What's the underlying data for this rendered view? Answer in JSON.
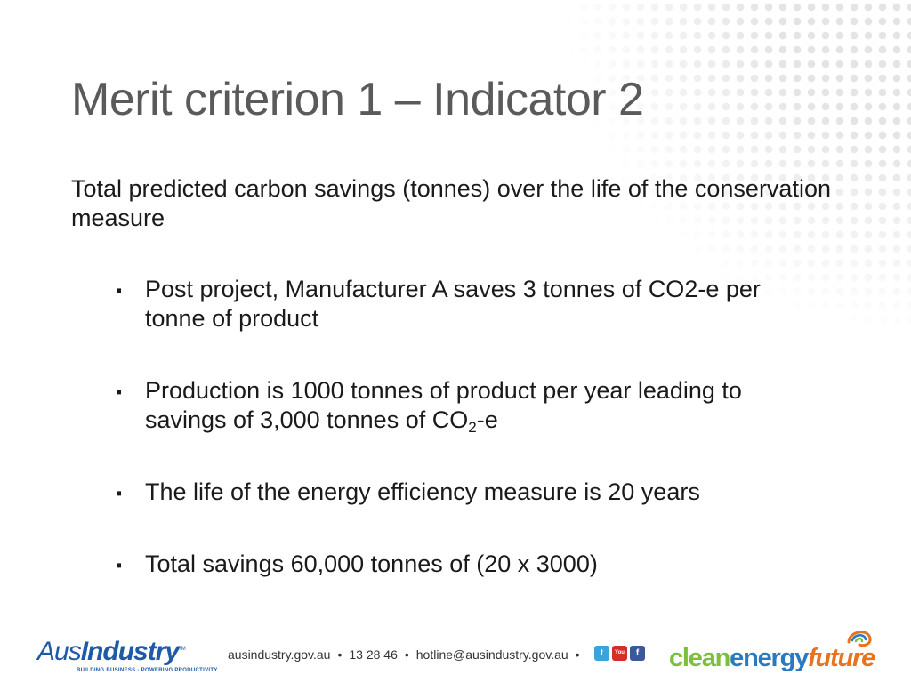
{
  "slide": {
    "title": "Merit criterion 1 – Indicator 2",
    "intro": "Total predicted carbon savings (tonnes) over the life of the conservation measure",
    "bullet_symbol": "▪",
    "bullets": [
      {
        "text": "Post project, Manufacturer A saves 3 tonnes of CO2-e per tonne of product"
      },
      {
        "text_before": "Production is 1000 tonnes of product per year leading to savings of 3,000 tonnes of CO",
        "subscript": "2",
        "text_after": "-e"
      },
      {
        "text": "The life of the energy efficiency measure is 20 years"
      },
      {
        "text": "Total savings 60,000 tonnes of  (20 x 3000)"
      }
    ]
  },
  "footer": {
    "ausindustry_logo": {
      "prefix": "Aus",
      "name": "Industry",
      "tm": "TM",
      "tagline": "BUILDING BUSINESS · POWERING PRODUCTIVITY"
    },
    "website": "ausindustry.gov.au",
    "separator": "•",
    "phone": "13 28 46",
    "email": "hotline@ausindustry.gov.au",
    "social_icons": [
      "twitter-icon",
      "youtube-icon",
      "facebook-icon"
    ],
    "social_glyphs": {
      "twitter": "t",
      "youtube": "You Tube",
      "facebook": "f"
    },
    "clean_energy_logo": {
      "part1": "clean",
      "part2": "energy",
      "part3": "future"
    }
  },
  "colors": {
    "title": "#5a5a5a",
    "ausindustry_blue": "#1f5aa6",
    "clean_green": "#7bbf3a",
    "energy_blue": "#2a7abf",
    "future_orange": "#e8731f"
  }
}
